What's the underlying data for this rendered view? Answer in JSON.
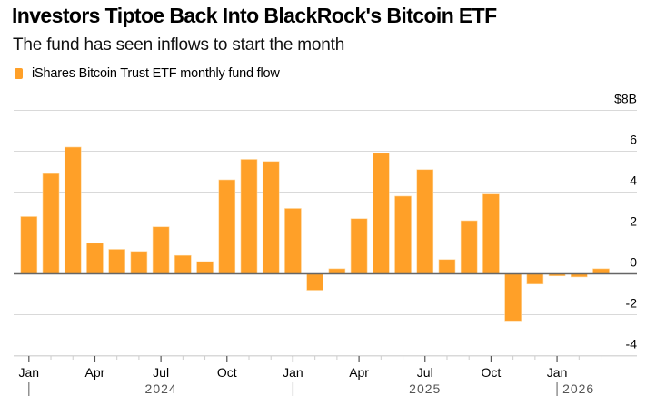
{
  "chart_data": {
    "type": "bar",
    "title": "Investors Tiptoe Back Into BlackRock's Bitcoin ETF",
    "subtitle": "The fund has seen inflows to start the month",
    "legend": [
      {
        "label": "iShares Bitcoin Trust ETF monthly fund flow",
        "color": "#FFA028"
      }
    ],
    "legend_position": "top-left",
    "xlabel": "",
    "ylabel": "",
    "y_unit_label": "$8B",
    "ylim": [
      -4,
      8
    ],
    "yticks": [
      -4,
      -2,
      0,
      2,
      4,
      6,
      8
    ],
    "ytick_labels": [
      "-4",
      "-2",
      "0",
      "2",
      "4",
      "6",
      "$8B"
    ],
    "y_axis_side": "right",
    "grid": true,
    "categories": [
      "Jan 2024",
      "Feb 2024",
      "Mar 2024",
      "Apr 2024",
      "May 2024",
      "Jun 2024",
      "Jul 2024",
      "Aug 2024",
      "Sep 2024",
      "Oct 2024",
      "Nov 2024",
      "Dec 2024",
      "Jan 2025",
      "Feb 2025",
      "Mar 2025",
      "Apr 2025",
      "May 2025",
      "Jun 2025",
      "Jul 2025",
      "Aug 2025",
      "Sep 2025",
      "Oct 2025",
      "Nov 2025",
      "Dec 2025",
      "Jan 2026",
      "Feb 2026",
      "Mar 2026"
    ],
    "values": [
      2.8,
      4.9,
      6.2,
      1.5,
      1.2,
      1.1,
      2.3,
      0.9,
      0.6,
      4.6,
      5.6,
      5.5,
      3.2,
      -0.8,
      0.25,
      2.7,
      5.9,
      3.8,
      5.1,
      0.7,
      2.6,
      3.9,
      -2.3,
      -0.5,
      -0.1,
      -0.15,
      0.25
    ],
    "xtick_labels": [
      {
        "index": 0,
        "label": "Jan"
      },
      {
        "index": 3,
        "label": "Apr"
      },
      {
        "index": 6,
        "label": "Jul"
      },
      {
        "index": 9,
        "label": "Oct"
      },
      {
        "index": 12,
        "label": "Jan"
      },
      {
        "index": 15,
        "label": "Apr"
      },
      {
        "index": 18,
        "label": "Jul"
      },
      {
        "index": 21,
        "label": "Oct"
      },
      {
        "index": 24,
        "label": "Jan"
      }
    ],
    "year_labels": [
      {
        "label": "2024",
        "start_index": 0
      },
      {
        "label": "2025",
        "start_index": 12
      },
      {
        "label": "2026",
        "start_index": 24
      }
    ],
    "bar_color": "#FFA028"
  }
}
